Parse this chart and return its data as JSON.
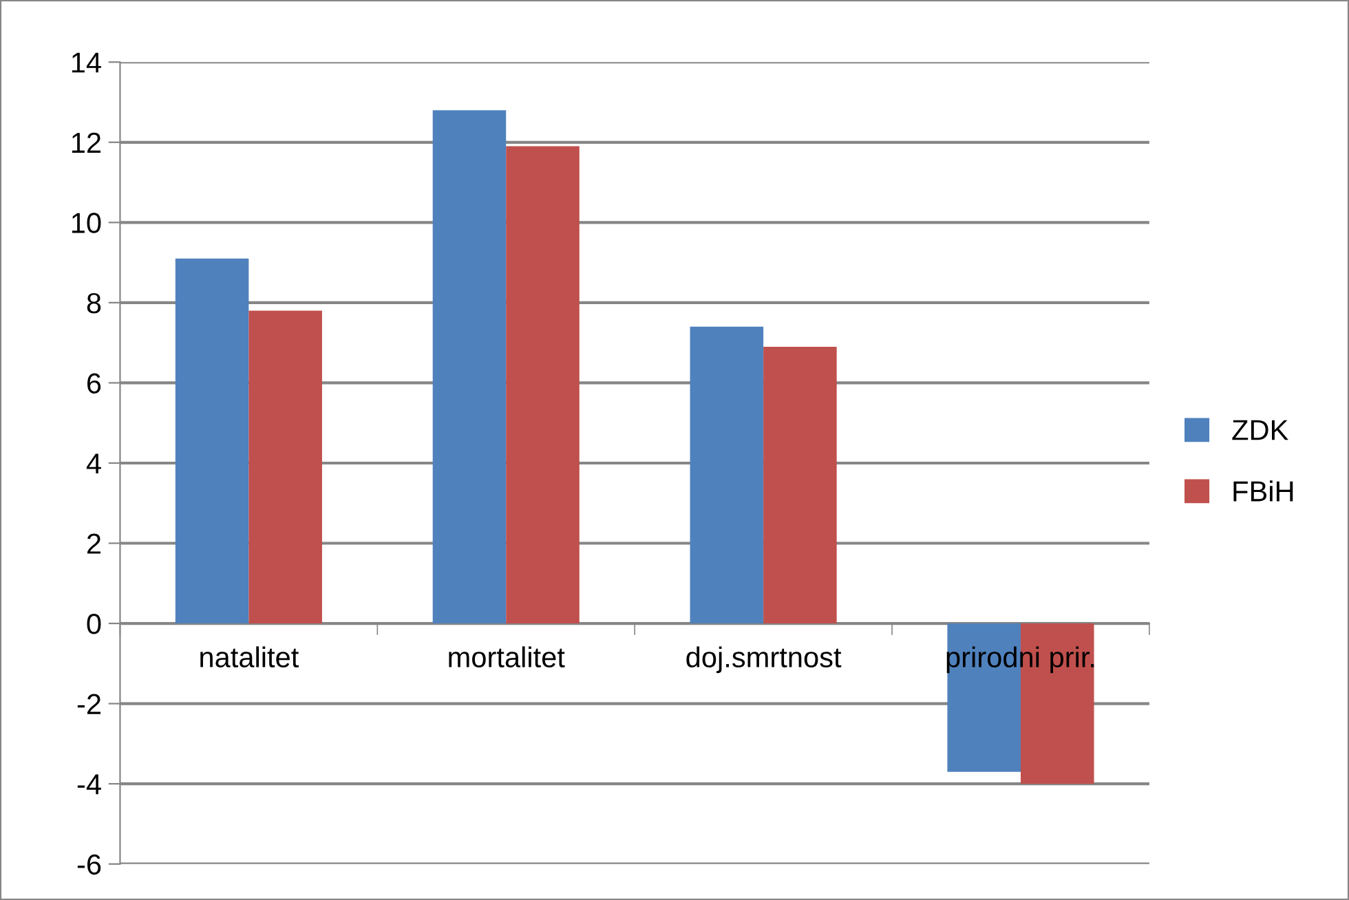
{
  "chart_data": {
    "type": "bar",
    "categories": [
      "natalitet",
      "mortalitet",
      "doj.smrtnost",
      "prirodni prir."
    ],
    "series": [
      {
        "name": "ZDK",
        "color": "#4f81bd",
        "values": [
          9.1,
          12.8,
          7.4,
          -3.7
        ]
      },
      {
        "name": "FBiH",
        "color": "#c0504d",
        "values": [
          7.8,
          11.9,
          6.9,
          -4.0
        ]
      }
    ],
    "ylim": [
      -6,
      14
    ],
    "yticks": [
      -6,
      -4,
      -2,
      0,
      2,
      4,
      6,
      8,
      10,
      12,
      14
    ],
    "grid": "y",
    "legend": "right"
  }
}
